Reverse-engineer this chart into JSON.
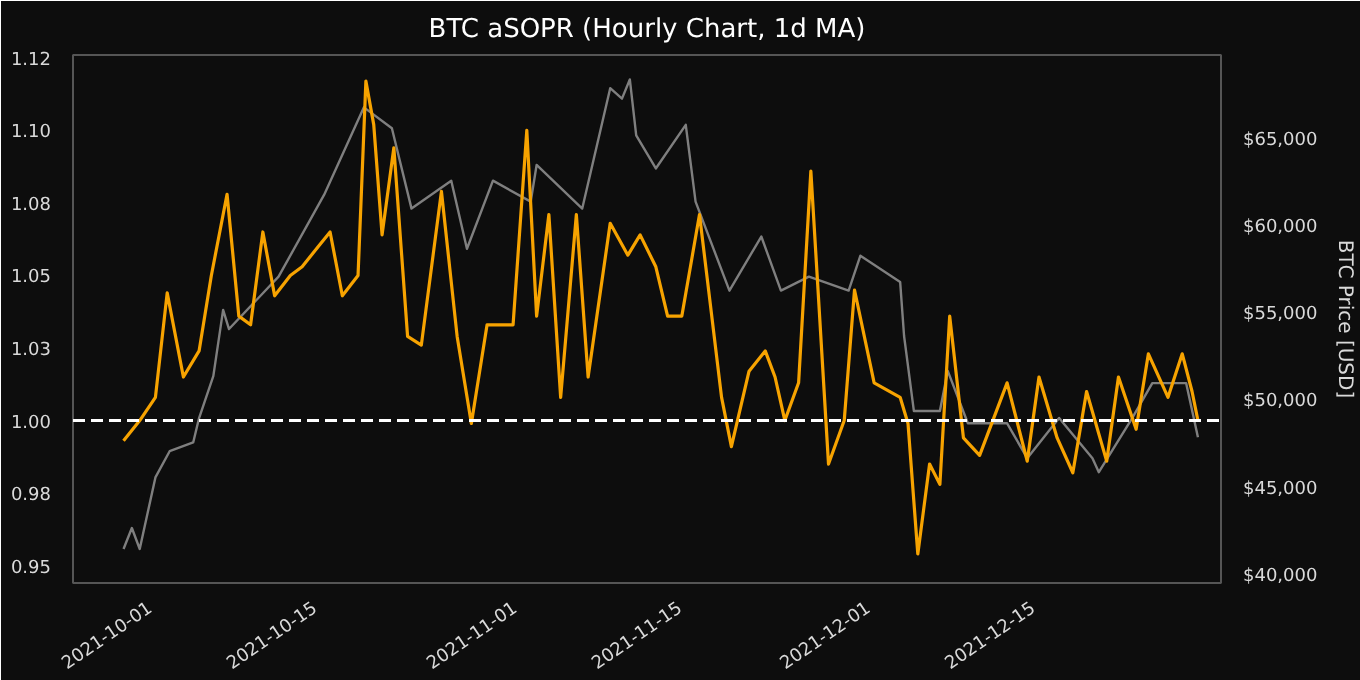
{
  "chart_data": {
    "type": "line",
    "title": "BTC aSOPR (Hourly Chart, 1d MA)",
    "y2label": "BTC Price [USD]",
    "xlim": [
      "2021-09-24T12:00",
      "2021-12-31T00:00"
    ],
    "xticks": [
      "2021-10-01",
      "2021-10-15",
      "2021-11-01",
      "2021-11-15",
      "2021-12-01",
      "2021-12-15"
    ],
    "ylim": [
      0.944,
      1.126
    ],
    "yticks": [
      {
        "value": 0.95,
        "label": "0.95"
      },
      {
        "value": 0.975,
        "label": "0.98"
      },
      {
        "value": 1.0,
        "label": "1.00"
      },
      {
        "value": 1.025,
        "label": "1.03"
      },
      {
        "value": 1.05,
        "label": "1.05"
      },
      {
        "value": 1.075,
        "label": "1.08"
      },
      {
        "value": 1.1,
        "label": "1.10"
      },
      {
        "value": 1.125,
        "label": "1.12"
      }
    ],
    "y2lim": [
      39650,
      69900
    ],
    "y2ticks": [
      {
        "value": 40000,
        "label": "$40,000"
      },
      {
        "value": 45000,
        "label": "$45,000"
      },
      {
        "value": 50000,
        "label": "$50,000"
      },
      {
        "value": 55000,
        "label": "$55,000"
      },
      {
        "value": 60000,
        "label": "$60,000"
      },
      {
        "value": 65000,
        "label": "$65,000"
      }
    ],
    "grid": false,
    "ref_lines": [
      {
        "axis": "y",
        "value": 1.0,
        "color": "#ffffff",
        "line_style": "dashed"
      }
    ],
    "series": [
      {
        "color": "#7f7f7f",
        "axis": "y2",
        "x": [
          "2021-09-28T19:00",
          "2021-09-29T12:00",
          "2021-09-30T04:00",
          "2021-10-01T12:00",
          "2021-10-02T17:00",
          "2021-10-04T17:00",
          "2021-10-05T05:00",
          "2021-10-06T10:00",
          "2021-10-07T06:00",
          "2021-10-07T18:00",
          "2021-10-11T23:00",
          "2021-10-15T20:00",
          "2021-10-19T05:00",
          "2021-10-21T14:00",
          "2021-10-23T06:00",
          "2021-10-26T15:00",
          "2021-10-27T23:00",
          "2021-10-30T04:00",
          "2021-11-02T09:00",
          "2021-11-02T21:00",
          "2021-11-06T18:00",
          "2021-11-09T03:00",
          "2021-11-10T03:00",
          "2021-11-10T19:00",
          "2021-11-11T08:00",
          "2021-11-13T00:00",
          "2021-11-15T13:00",
          "2021-11-16T09:00",
          "2021-11-19T06:00",
          "2021-11-21T23:00",
          "2021-11-23T15:00",
          "2021-11-26T00:00",
          "2021-11-29T09:00",
          "2021-11-30T09:00",
          "2021-12-03T18:00",
          "2021-12-04T02:00",
          "2021-12-04T22:00",
          "2021-12-07T03:00",
          "2021-12-07T19:00",
          "2021-12-09T12:00",
          "2021-12-12T20:00",
          "2021-12-14T13:00",
          "2021-12-17T06:00",
          "2021-12-20T02:00",
          "2021-12-20T15:00",
          "2021-12-23T11:00",
          "2021-12-25T04:00",
          "2021-12-28T01:00",
          "2021-12-29T01:00"
        ],
        "values": [
          41600,
          42800,
          41600,
          45700,
          47200,
          47700,
          49100,
          51500,
          55300,
          54200,
          57200,
          61900,
          66900,
          65700,
          61100,
          62700,
          58800,
          62700,
          61500,
          63600,
          61100,
          68000,
          67400,
          68500,
          65300,
          63400,
          65900,
          61500,
          56400,
          59500,
          56400,
          57200,
          56400,
          58400,
          56900,
          53800,
          49500,
          49500,
          51800,
          48800,
          48800,
          46800,
          49100,
          46800,
          46000,
          49100,
          51100,
          51100,
          48000
        ]
      },
      {
        "color": "#f7a300",
        "x": [
          "2021-09-28T19:00",
          "2021-09-30T04:00",
          "2021-10-01T12:00",
          "2021-10-02T12:00",
          "2021-10-03T21:00",
          "2021-10-05T05:00",
          "2021-10-06T06:00",
          "2021-10-07T14:00",
          "2021-10-08T14:00",
          "2021-10-09T14:00",
          "2021-10-10T15:00",
          "2021-10-11T15:00",
          "2021-10-12T23:00",
          "2021-10-13T23:00",
          "2021-10-15T08:00",
          "2021-10-16T08:00",
          "2021-10-17T09:00",
          "2021-10-18T17:00",
          "2021-10-19T09:00",
          "2021-10-20T01:00",
          "2021-10-20T18:00",
          "2021-10-21T18:00",
          "2021-10-22T22:00",
          "2021-10-24T02:00",
          "2021-10-25T19:00",
          "2021-10-27T03:00",
          "2021-10-28T08:00",
          "2021-10-29T16:00",
          "2021-10-31T21:00",
          "2021-11-02T01:00",
          "2021-11-02T21:00",
          "2021-11-03T22:00",
          "2021-11-04T22:00",
          "2021-11-06T06:00",
          "2021-11-07T06:00",
          "2021-11-09T03:00",
          "2021-11-10T15:00",
          "2021-11-11T16:00",
          "2021-11-13T00:00",
          "2021-11-14T00:00",
          "2021-11-15T05:00",
          "2021-11-16T17:00",
          "2021-11-18T14:00",
          "2021-11-19T10:00",
          "2021-11-20T22:00",
          "2021-11-22T07:00",
          "2021-11-23T03:00",
          "2021-11-23T23:00",
          "2021-11-25T03:00",
          "2021-11-26T04:00",
          "2021-11-27T16:00",
          "2021-11-29T00:00",
          "2021-11-29T21:00",
          "2021-12-01T13:00",
          "2021-12-03T18:00",
          "2021-12-04T10:00",
          "2021-12-05T06:00",
          "2021-12-06T06:00",
          "2021-12-07T03:00",
          "2021-12-07T23:00",
          "2021-12-09T03:00",
          "2021-12-10T12:00",
          "2021-12-12T20:00",
          "2021-12-14T13:00",
          "2021-12-15T13:00",
          "2021-12-17T02:00",
          "2021-12-18T10:00",
          "2021-12-19T14:00",
          "2021-12-21T07:00",
          "2021-12-22T07:00",
          "2021-12-23T19:00",
          "2021-12-24T20:00",
          "2021-12-26T12:00",
          "2021-12-27T17:00",
          "2021-12-28T13:00",
          "2021-12-29T01:00"
        ],
        "values": [
          0.993,
          1.0,
          1.008,
          1.044,
          1.015,
          1.024,
          1.05,
          1.078,
          1.036,
          1.033,
          1.065,
          1.043,
          1.05,
          1.053,
          1.06,
          1.065,
          1.043,
          1.05,
          1.117,
          1.102,
          1.064,
          1.094,
          1.029,
          1.026,
          1.079,
          1.029,
          0.999,
          1.033,
          1.033,
          1.1,
          1.036,
          1.071,
          1.008,
          1.071,
          1.015,
          1.068,
          1.057,
          1.064,
          1.053,
          1.036,
          1.036,
          1.071,
          1.008,
          0.991,
          1.017,
          1.024,
          1.015,
          1.0,
          1.013,
          1.086,
          0.985,
          1.0,
          1.045,
          1.013,
          1.008,
          0.999,
          0.954,
          0.985,
          0.978,
          1.036,
          0.994,
          0.988,
          1.013,
          0.986,
          1.015,
          0.994,
          0.982,
          1.01,
          0.986,
          1.015,
          0.997,
          1.023,
          1.008,
          1.023,
          1.01,
          1.0
        ]
      }
    ]
  }
}
